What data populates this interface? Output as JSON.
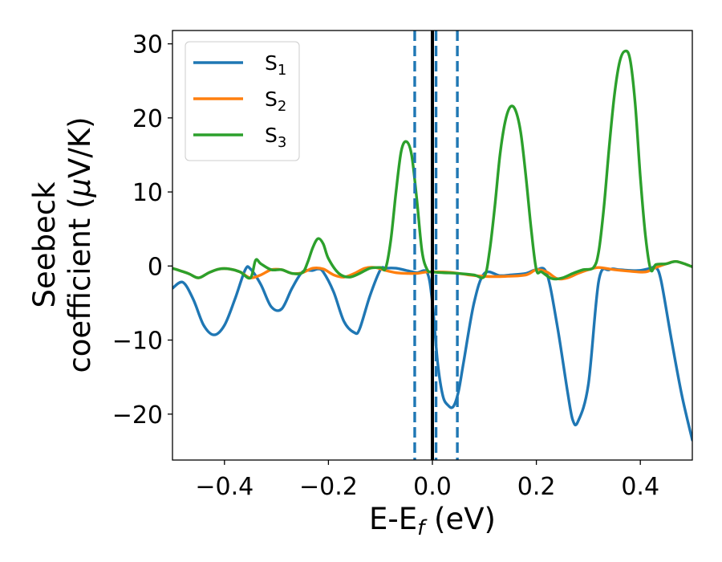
{
  "chart_data": {
    "type": "line",
    "xlabel": "E-E",
    "xlabel_sub": "f",
    "xlabel_unit": " (eV)",
    "ylabel_line1": "Seebeck",
    "ylabel_line2_prefix": "coefficient  (",
    "ylabel_mu": "μ",
    "ylabel_line2_suffix": "V/K)",
    "xlim": [
      -0.5,
      0.5
    ],
    "ylim": [
      -26.2,
      31.8
    ],
    "xticks": [
      -0.4,
      -0.2,
      0.0,
      0.2,
      0.4
    ],
    "xtick_labels": [
      "−0.4",
      "−0.2",
      "0.0",
      "0.2",
      "0.4"
    ],
    "yticks": [
      -20,
      -10,
      0,
      10,
      20,
      30
    ],
    "ytick_labels": [
      "−20",
      "−10",
      "0",
      "10",
      "20",
      "30"
    ],
    "grid": false,
    "legend_position": "top-left",
    "vlines": [
      {
        "x": 0.0,
        "style": "solid",
        "color": "#000000"
      },
      {
        "x": -0.034,
        "style": "dashed",
        "color": "#1f77b4"
      },
      {
        "x": 0.007,
        "style": "dashed",
        "color": "#1f77b4"
      },
      {
        "x": 0.048,
        "style": "dashed",
        "color": "#1f77b4"
      }
    ],
    "series": [
      {
        "name": "S",
        "sub": "1",
        "color": "#1f77b4",
        "x": [
          -0.5,
          -0.48,
          -0.46,
          -0.44,
          -0.42,
          -0.4,
          -0.38,
          -0.36,
          -0.35,
          -0.33,
          -0.31,
          -0.29,
          -0.27,
          -0.25,
          -0.23,
          -0.22,
          -0.21,
          -0.19,
          -0.17,
          -0.15,
          -0.14,
          -0.12,
          -0.1,
          -0.09,
          -0.07,
          -0.05,
          -0.03,
          -0.01,
          0.0,
          0.01,
          0.02,
          0.03,
          0.04,
          0.05,
          0.06,
          0.08,
          0.1,
          0.13,
          0.15,
          0.18,
          0.2,
          0.22,
          0.24,
          0.26,
          0.27,
          0.28,
          0.3,
          0.32,
          0.34,
          0.36,
          0.38,
          0.4,
          0.42,
          0.43,
          0.44,
          0.46,
          0.48,
          0.5
        ],
        "values": [
          -3.0,
          -2.2,
          -4.5,
          -8.0,
          -9.3,
          -8.0,
          -4.5,
          -0.5,
          -0.4,
          -2.5,
          -5.5,
          -5.8,
          -3.0,
          -0.8,
          -0.6,
          -0.4,
          -0.8,
          -3.5,
          -7.5,
          -9.0,
          -8.5,
          -4.0,
          -0.5,
          -0.3,
          -0.3,
          -0.6,
          -0.9,
          -0.9,
          -5.0,
          -13.0,
          -17.5,
          -18.8,
          -19.0,
          -17.0,
          -13.0,
          -5.0,
          -1.0,
          -1.3,
          -1.2,
          -1.0,
          -0.5,
          -1.0,
          -8.0,
          -17.0,
          -20.8,
          -21.0,
          -16.0,
          -2.0,
          -0.5,
          -0.5,
          -0.6,
          -0.6,
          -0.3,
          -0.2,
          -2.0,
          -10.0,
          -17.5,
          -23.5
        ]
      },
      {
        "name": "S",
        "sub": "2",
        "color": "#ff7f0e",
        "x": [
          -0.5,
          -0.47,
          -0.45,
          -0.43,
          -0.41,
          -0.39,
          -0.37,
          -0.35,
          -0.33,
          -0.31,
          -0.29,
          -0.27,
          -0.25,
          -0.23,
          -0.21,
          -0.19,
          -0.17,
          -0.15,
          -0.13,
          -0.11,
          -0.09,
          -0.07,
          -0.05,
          -0.03,
          -0.01,
          0.01,
          0.04,
          0.07,
          0.1,
          0.14,
          0.18,
          0.2,
          0.22,
          0.24,
          0.26,
          0.28,
          0.3,
          0.32,
          0.35,
          0.38,
          0.41,
          0.43,
          0.45,
          0.47,
          0.5
        ],
        "values": [
          -0.3,
          -1.0,
          -1.6,
          -0.9,
          -0.4,
          -0.4,
          -0.8,
          -1.6,
          -1.2,
          -0.5,
          -0.5,
          -1.0,
          -0.9,
          -0.3,
          -0.4,
          -1.2,
          -1.5,
          -1.0,
          -0.3,
          -0.2,
          -0.6,
          -0.9,
          -1.0,
          -1.0,
          -0.8,
          -0.8,
          -0.9,
          -1.2,
          -1.4,
          -1.4,
          -1.2,
          -0.5,
          -0.8,
          -1.7,
          -1.6,
          -1.0,
          -0.5,
          -0.2,
          -0.5,
          -0.7,
          -0.8,
          -0.2,
          0.3,
          0.6,
          -0.1
        ]
      },
      {
        "name": "S",
        "sub": "3",
        "color": "#2ca02c",
        "x": [
          -0.5,
          -0.47,
          -0.45,
          -0.43,
          -0.41,
          -0.39,
          -0.37,
          -0.35,
          -0.34,
          -0.33,
          -0.31,
          -0.29,
          -0.27,
          -0.25,
          -0.24,
          -0.23,
          -0.22,
          -0.21,
          -0.2,
          -0.18,
          -0.16,
          -0.14,
          -0.12,
          -0.1,
          -0.09,
          -0.08,
          -0.07,
          -0.06,
          -0.05,
          -0.04,
          -0.03,
          -0.02,
          -0.01,
          0.0,
          0.02,
          0.05,
          0.08,
          0.1,
          0.11,
          0.12,
          0.13,
          0.14,
          0.15,
          0.16,
          0.17,
          0.18,
          0.19,
          0.2,
          0.21,
          0.23,
          0.25,
          0.27,
          0.29,
          0.31,
          0.32,
          0.33,
          0.34,
          0.35,
          0.36,
          0.37,
          0.38,
          0.39,
          0.4,
          0.41,
          0.42,
          0.43,
          0.45,
          0.47,
          0.5
        ],
        "values": [
          -0.3,
          -1.0,
          -1.6,
          -0.9,
          -0.4,
          -0.4,
          -0.8,
          -1.6,
          0.8,
          0.3,
          -0.5,
          -0.5,
          -1.0,
          -0.9,
          0.5,
          2.5,
          3.7,
          3.0,
          1.0,
          -1.0,
          -1.5,
          -1.0,
          -0.3,
          -0.2,
          -0.3,
          3.5,
          10.0,
          15.5,
          16.8,
          15.0,
          9.0,
          2.0,
          -0.5,
          -0.8,
          -0.9,
          -1.0,
          -1.2,
          -1.4,
          2.0,
          8.0,
          15.0,
          19.5,
          21.5,
          21.0,
          18.0,
          12.0,
          5.0,
          -0.5,
          -0.8,
          -1.7,
          -1.6,
          -1.0,
          -0.5,
          -0.2,
          2.0,
          8.0,
          16.0,
          23.0,
          27.5,
          29.0,
          28.0,
          22.0,
          12.0,
          4.0,
          -0.5,
          0.2,
          0.3,
          0.6,
          -0.1
        ]
      }
    ]
  }
}
